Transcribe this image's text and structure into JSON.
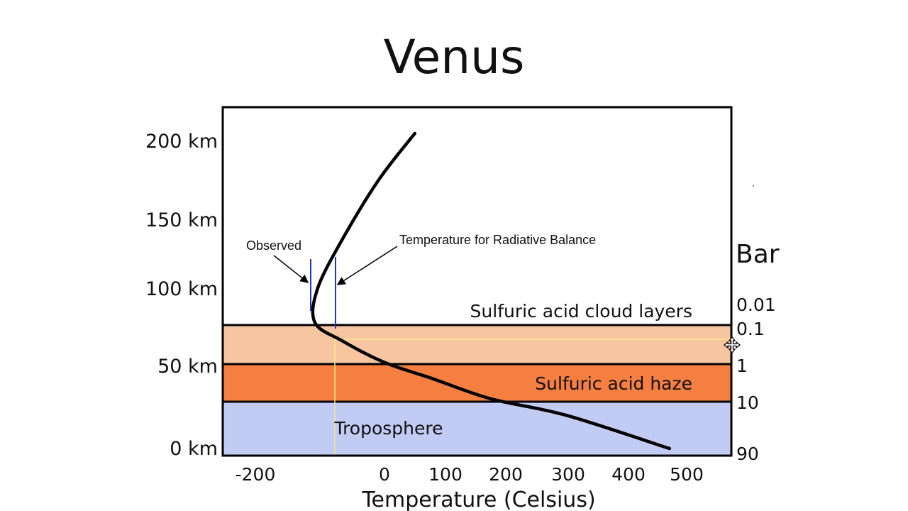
{
  "title": "Venus",
  "chart_data": {
    "type": "line",
    "xlabel": "Temperature (Celsius)",
    "x_ticks": [
      "-200",
      "0",
      "100",
      "200",
      "300",
      "400",
      "500"
    ],
    "y_ticks": [
      "200 km",
      "150 km",
      "100 km",
      "50 km",
      "0 km"
    ],
    "right_axis_title": "Bar",
    "right_ticks": [
      "0.01",
      "0.1",
      "1",
      "10",
      "90"
    ],
    "layers": [
      {
        "label": "Sulfuric acid cloud layers",
        "color": "#f7c6a1"
      },
      {
        "label": "Sulfuric acid haze",
        "color": "#f47f41"
      },
      {
        "label": "Troposphere",
        "color": "#c2cbf3"
      }
    ],
    "annotations": {
      "observed": "Observed",
      "radiative": "Temperature for Radiative Balance"
    },
    "series": [
      {
        "x": [
          470,
          300,
          175,
          80,
          0,
          -70,
          -115,
          -110,
          -70,
          -10,
          50
        ],
        "y": [
          0,
          20,
          30,
          42,
          52,
          66,
          78,
          100,
          135,
          175,
          205
        ]
      }
    ],
    "colors": {
      "curve": "#000000",
      "marker": "#2233cc",
      "guide": "#f5e88a"
    }
  }
}
